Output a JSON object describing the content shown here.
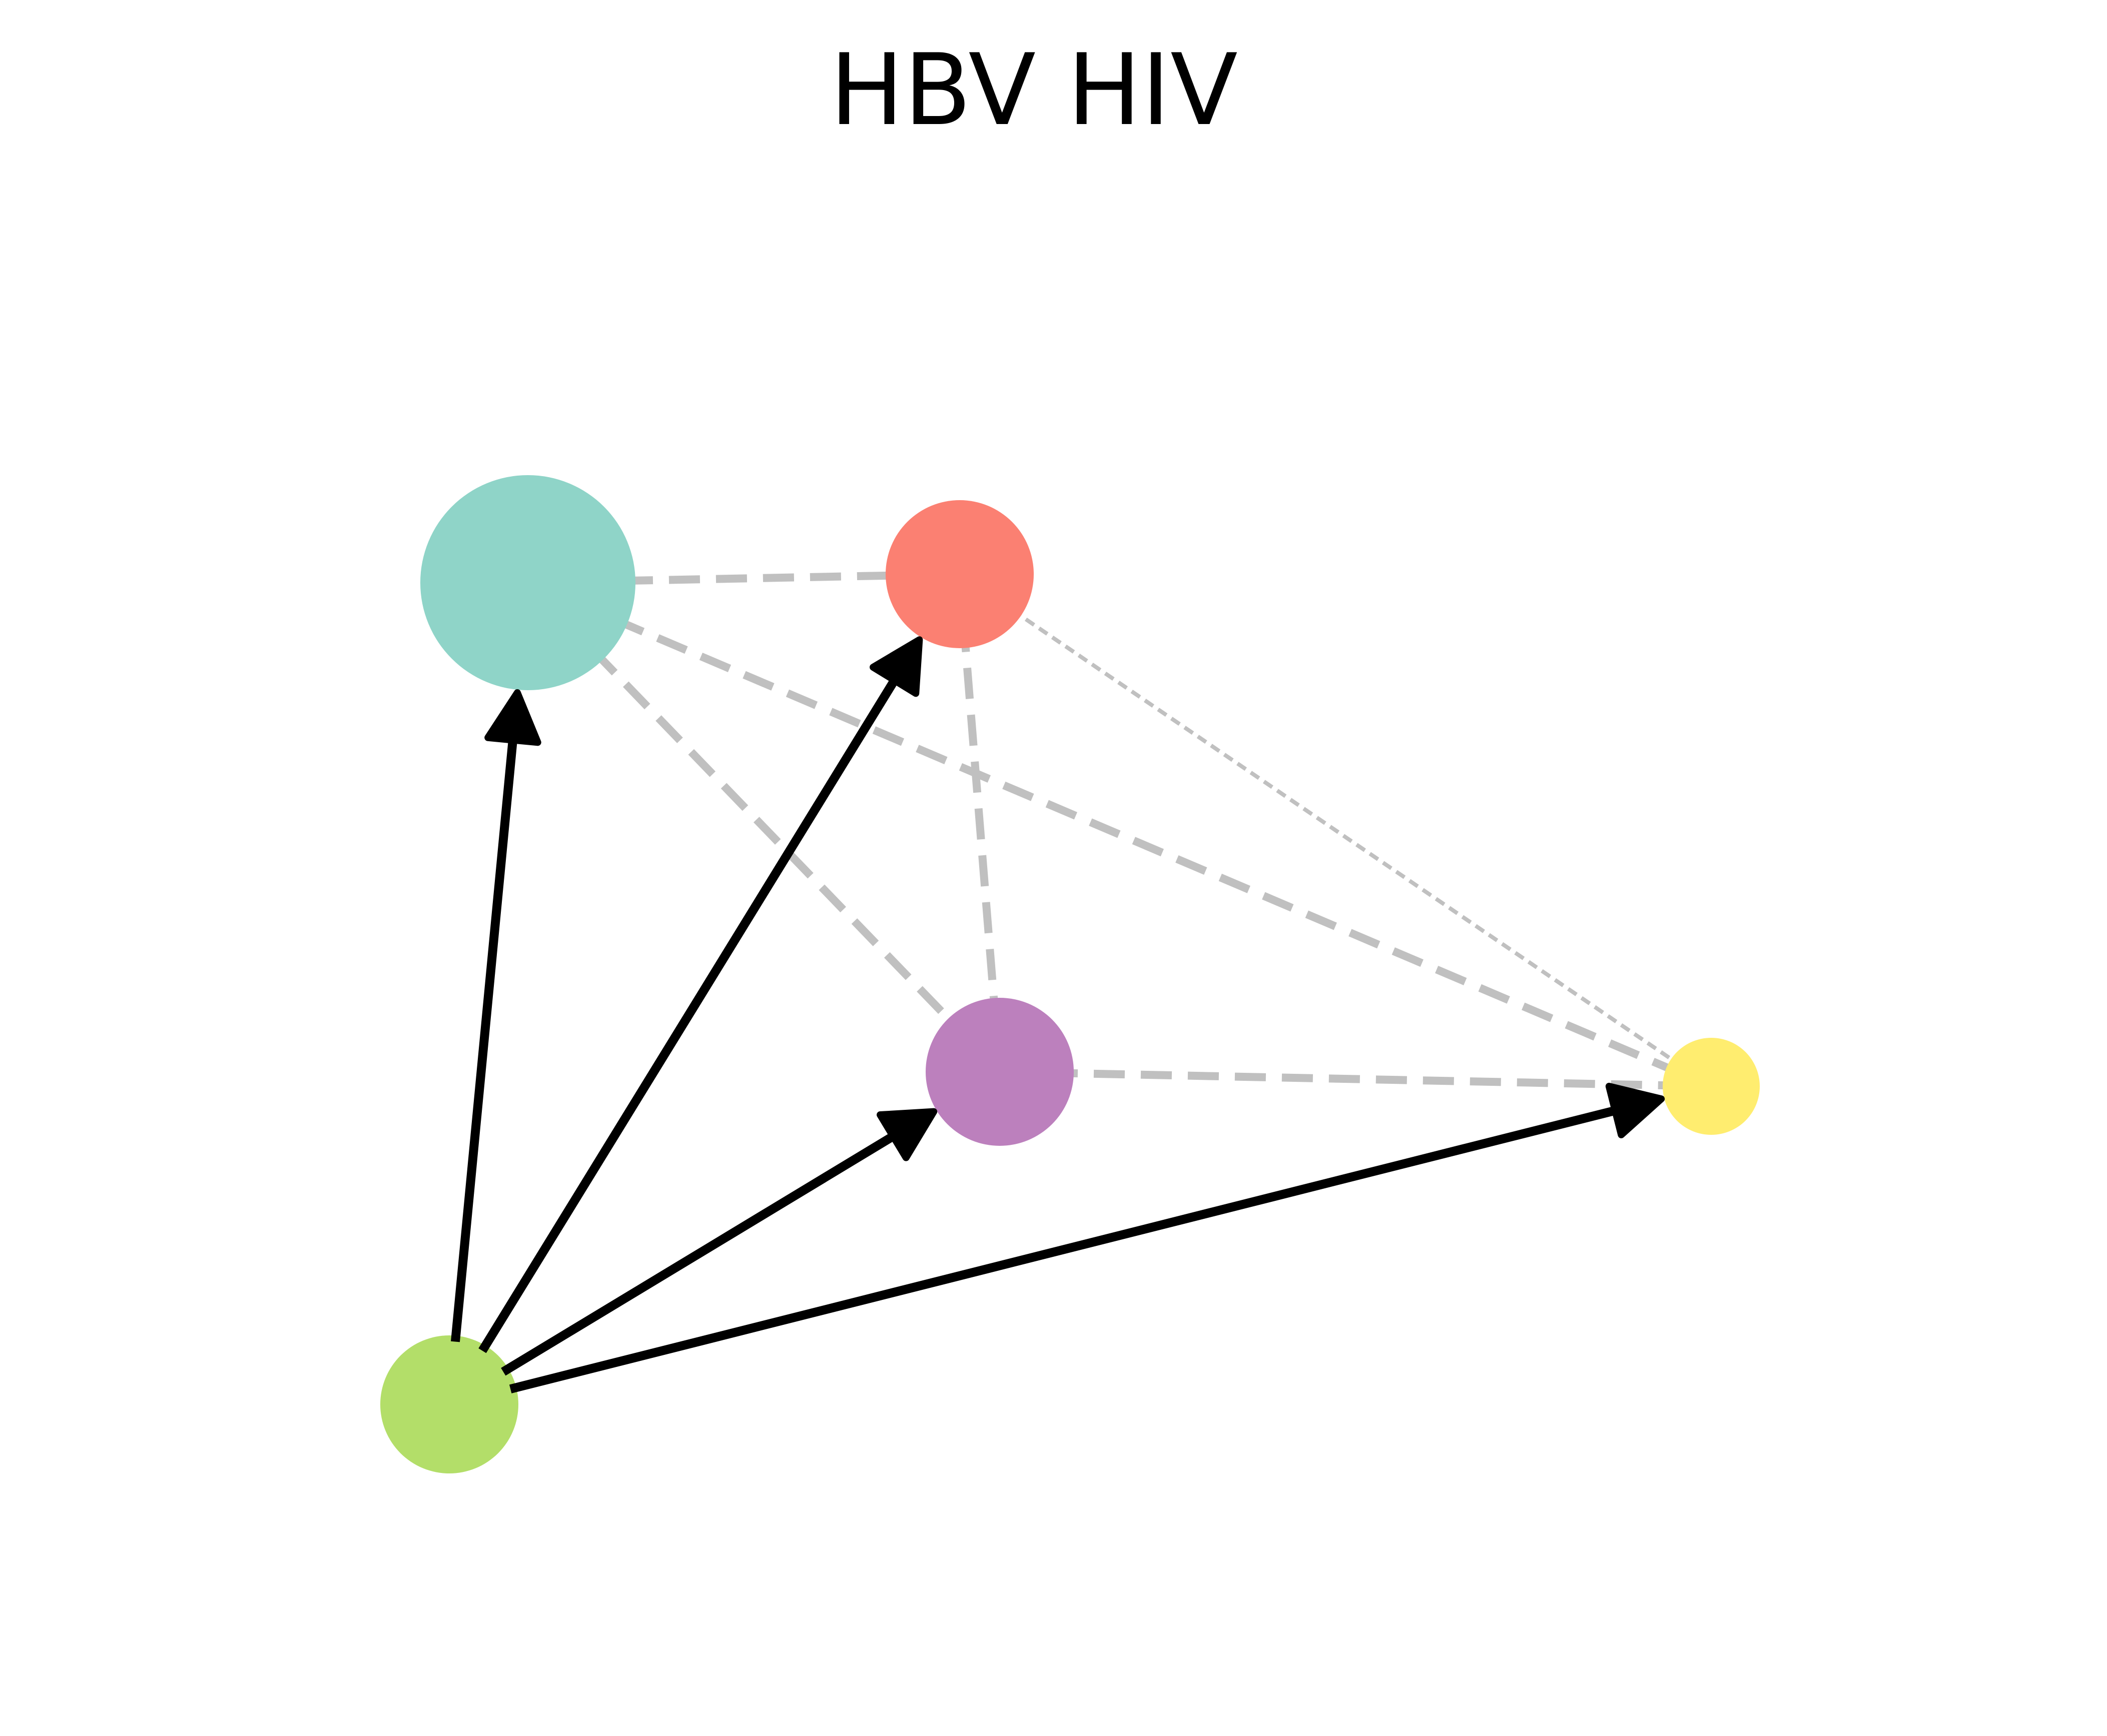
{
  "title": "HBV HIV",
  "colors": {
    "background": "#ffffff",
    "directed_edge": "#000000",
    "undirected_edge": "#c0c0c0"
  },
  "nodes": [
    {
      "id": "teal",
      "color": "#8fd4c8"
    },
    {
      "id": "salmon",
      "color": "#fb8072"
    },
    {
      "id": "purple",
      "color": "#bc80bd"
    },
    {
      "id": "yellow",
      "color": "#ffed6f"
    },
    {
      "id": "green",
      "color": "#b3de69"
    }
  ],
  "directed_edges": [
    {
      "from": "green",
      "to": "teal"
    },
    {
      "from": "green",
      "to": "salmon"
    },
    {
      "from": "green",
      "to": "purple"
    },
    {
      "from": "green",
      "to": "yellow"
    }
  ],
  "undirected_edges": [
    {
      "a": "teal",
      "b": "salmon",
      "style": "dashed"
    },
    {
      "a": "teal",
      "b": "purple",
      "style": "dashed"
    },
    {
      "a": "teal",
      "b": "yellow",
      "style": "dashed"
    },
    {
      "a": "salmon",
      "b": "purple",
      "style": "dashed"
    },
    {
      "a": "salmon",
      "b": "yellow",
      "style": "dotted"
    },
    {
      "a": "purple",
      "b": "yellow",
      "style": "dashed"
    }
  ]
}
